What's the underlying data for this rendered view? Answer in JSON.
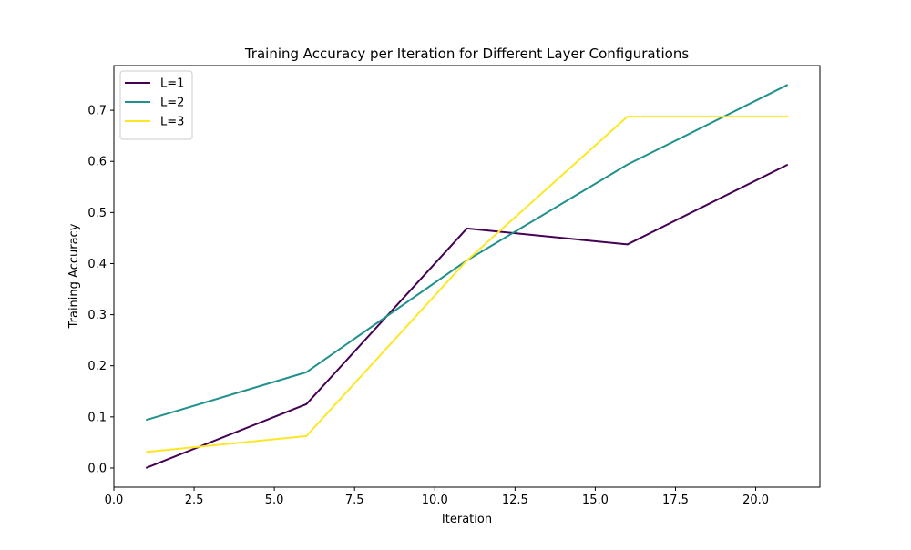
{
  "chart_data": {
    "type": "line",
    "title": "Training Accuracy per Iteration for Different Layer Configurations",
    "xlabel": "Iteration",
    "ylabel": "Training Accuracy",
    "xlim": [
      0.0,
      22.0
    ],
    "ylim": [
      -0.0375,
      0.7875
    ],
    "xticks": [
      {
        "value": 0.0,
        "label": "0.0"
      },
      {
        "value": 2.5,
        "label": "2.5"
      },
      {
        "value": 5.0,
        "label": "5.0"
      },
      {
        "value": 7.5,
        "label": "7.5"
      },
      {
        "value": 10.0,
        "label": "10.0"
      },
      {
        "value": 12.5,
        "label": "12.5"
      },
      {
        "value": 15.0,
        "label": "15.0"
      },
      {
        "value": 17.5,
        "label": "17.5"
      },
      {
        "value": 20.0,
        "label": "20.0"
      }
    ],
    "yticks": [
      {
        "value": 0.0,
        "label": "0.0"
      },
      {
        "value": 0.1,
        "label": "0.1"
      },
      {
        "value": 0.2,
        "label": "0.2"
      },
      {
        "value": 0.3,
        "label": "0.3"
      },
      {
        "value": 0.4,
        "label": "0.4"
      },
      {
        "value": 0.5,
        "label": "0.5"
      },
      {
        "value": 0.6,
        "label": "0.6"
      },
      {
        "value": 0.7,
        "label": "0.7"
      }
    ],
    "grid": false,
    "legend_position": "top-left",
    "x": [
      1,
      6,
      11,
      16,
      21
    ],
    "series": [
      {
        "name": "L=1",
        "color": "#440154",
        "values": [
          0.0,
          0.125,
          0.46875,
          0.4375,
          0.59375
        ]
      },
      {
        "name": "L=2",
        "color": "#21918c",
        "values": [
          0.09375,
          0.1875,
          0.40625,
          0.59375,
          0.75
        ]
      },
      {
        "name": "L=3",
        "color": "#fde725",
        "values": [
          0.03125,
          0.0625,
          0.40625,
          0.6875,
          0.6875
        ]
      }
    ]
  }
}
